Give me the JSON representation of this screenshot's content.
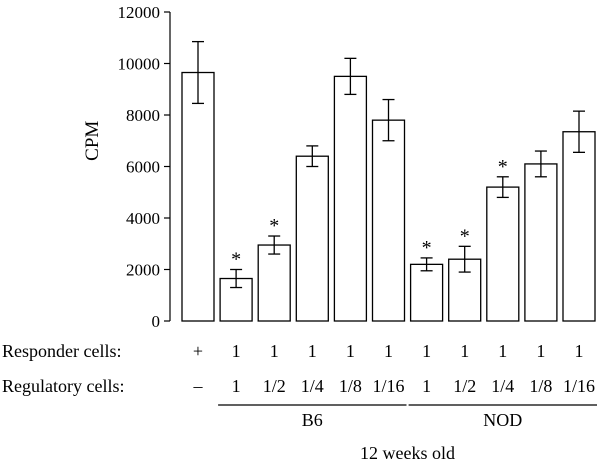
{
  "chart_data": {
    "type": "bar",
    "ylabel": "CPM",
    "ylim": [
      0,
      12000
    ],
    "yticks": [
      0,
      2000,
      4000,
      6000,
      8000,
      10000,
      12000
    ],
    "categories": [
      "+",
      "B6 1",
      "B6 1/2",
      "B6 1/4",
      "B6 1/8",
      "B6 1/16",
      "NOD 1",
      "NOD 1/2",
      "NOD 1/4",
      "NOD 1/8",
      "NOD 1/16"
    ],
    "values": [
      9650,
      1650,
      2950,
      6400,
      9500,
      7800,
      2200,
      2400,
      5200,
      6100,
      7350
    ],
    "errors": [
      1200,
      350,
      350,
      400,
      700,
      800,
      250,
      500,
      400,
      500,
      800
    ],
    "significant": [
      false,
      true,
      true,
      false,
      false,
      false,
      true,
      true,
      true,
      false,
      false
    ],
    "significance_marker": "*",
    "bar_color": "#ffffff",
    "edge_color": "#000000",
    "rows": [
      {
        "label": "Responder cells:",
        "values": [
          "+",
          "1",
          "1",
          "1",
          "1",
          "1",
          "1",
          "1",
          "1",
          "1",
          "1"
        ]
      },
      {
        "label": "Regulatory cells:",
        "values": [
          "–",
          "1",
          "1/2",
          "1/4",
          "1/8",
          "1/16",
          "1",
          "1/2",
          "1/4",
          "1/8",
          "1/16"
        ]
      }
    ],
    "groups": [
      {
        "label": "B6",
        "from": 1,
        "to": 5
      },
      {
        "label": "NOD",
        "from": 6,
        "to": 10
      }
    ],
    "footer": "12 weeks old"
  }
}
